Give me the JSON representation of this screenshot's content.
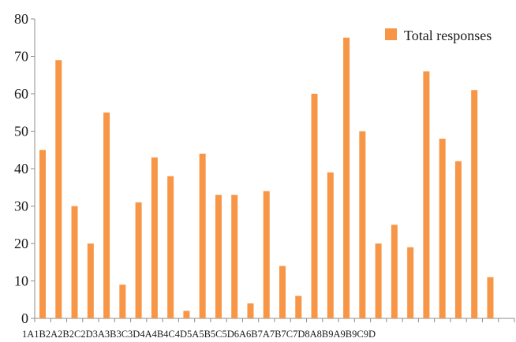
{
  "chart_data": {
    "type": "bar",
    "categories": [
      "1A",
      "1B",
      "2A",
      "2B",
      "2C",
      "2D",
      "3A",
      "3B",
      "3C",
      "3D",
      "4A",
      "4B",
      "4C",
      "4D",
      "5A",
      "5B",
      "5C",
      "5D",
      "6A",
      "6B",
      "7A",
      "7B",
      "7C",
      "7D",
      "8A",
      "8B",
      "9A",
      "9B",
      "9C",
      "9D"
    ],
    "series": [
      {
        "name": "Total responses",
        "values": [
          45,
          69,
          30,
          20,
          55,
          9,
          31,
          43,
          38,
          2,
          44,
          33,
          33,
          4,
          34,
          14,
          6,
          60,
          39,
          75,
          50,
          20,
          25,
          19,
          66,
          48,
          42,
          61,
          11,
          0
        ]
      }
    ],
    "title": "",
    "xlabel": "",
    "ylabel": "",
    "ylim": [
      0,
      80
    ],
    "yticks": [
      0,
      10,
      20,
      30,
      40,
      50,
      60,
      70,
      80
    ],
    "x_tick_text": "1A1B2A2B2C2D3A3B3C3D4A4B4C4D5A5B5C5D6A6B7A7B7C7D8A8B9A9B9C9D",
    "grid": false,
    "legend_position": "top-right",
    "colors": {
      "bar": "#F79646",
      "axis": "#8c8c8c",
      "text": "#1a1a1a"
    }
  }
}
